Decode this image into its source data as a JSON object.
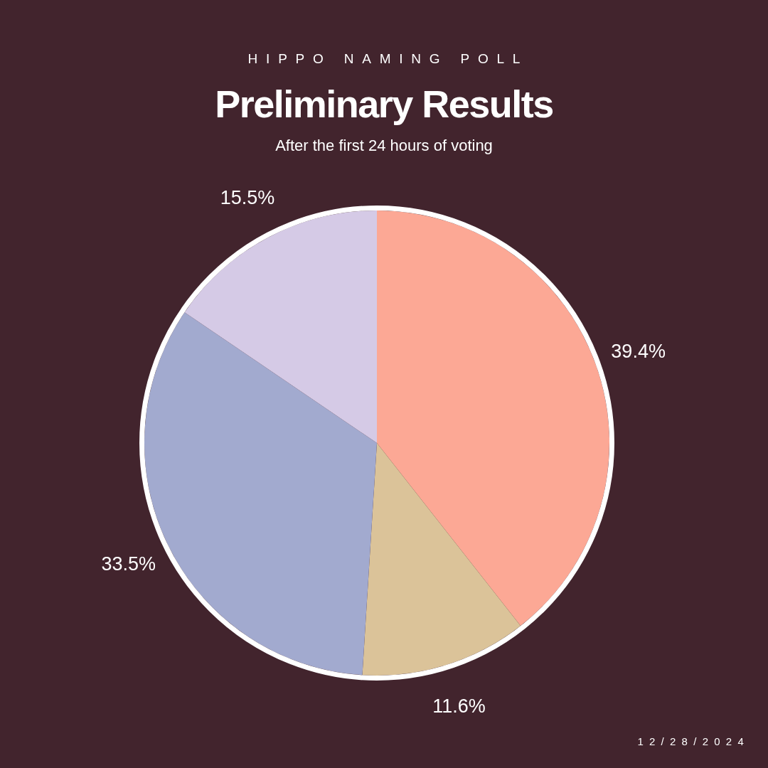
{
  "chart_data": {
    "type": "pie",
    "title": "Preliminary Results",
    "subtitle": "After the first 24 hours of voting",
    "annotations": [
      "HIPPO NAMING POLL",
      "12/28/2024"
    ],
    "categories": [
      null,
      null,
      null,
      null
    ],
    "values": [
      39.4,
      11.6,
      33.5,
      15.5
    ],
    "colors": [
      "#fca895",
      "#dbc399",
      "#a2aacf",
      "#d5cae6"
    ],
    "value_labels": [
      "39.4%",
      "11.6%",
      "33.5%",
      "15.5%"
    ]
  }
}
